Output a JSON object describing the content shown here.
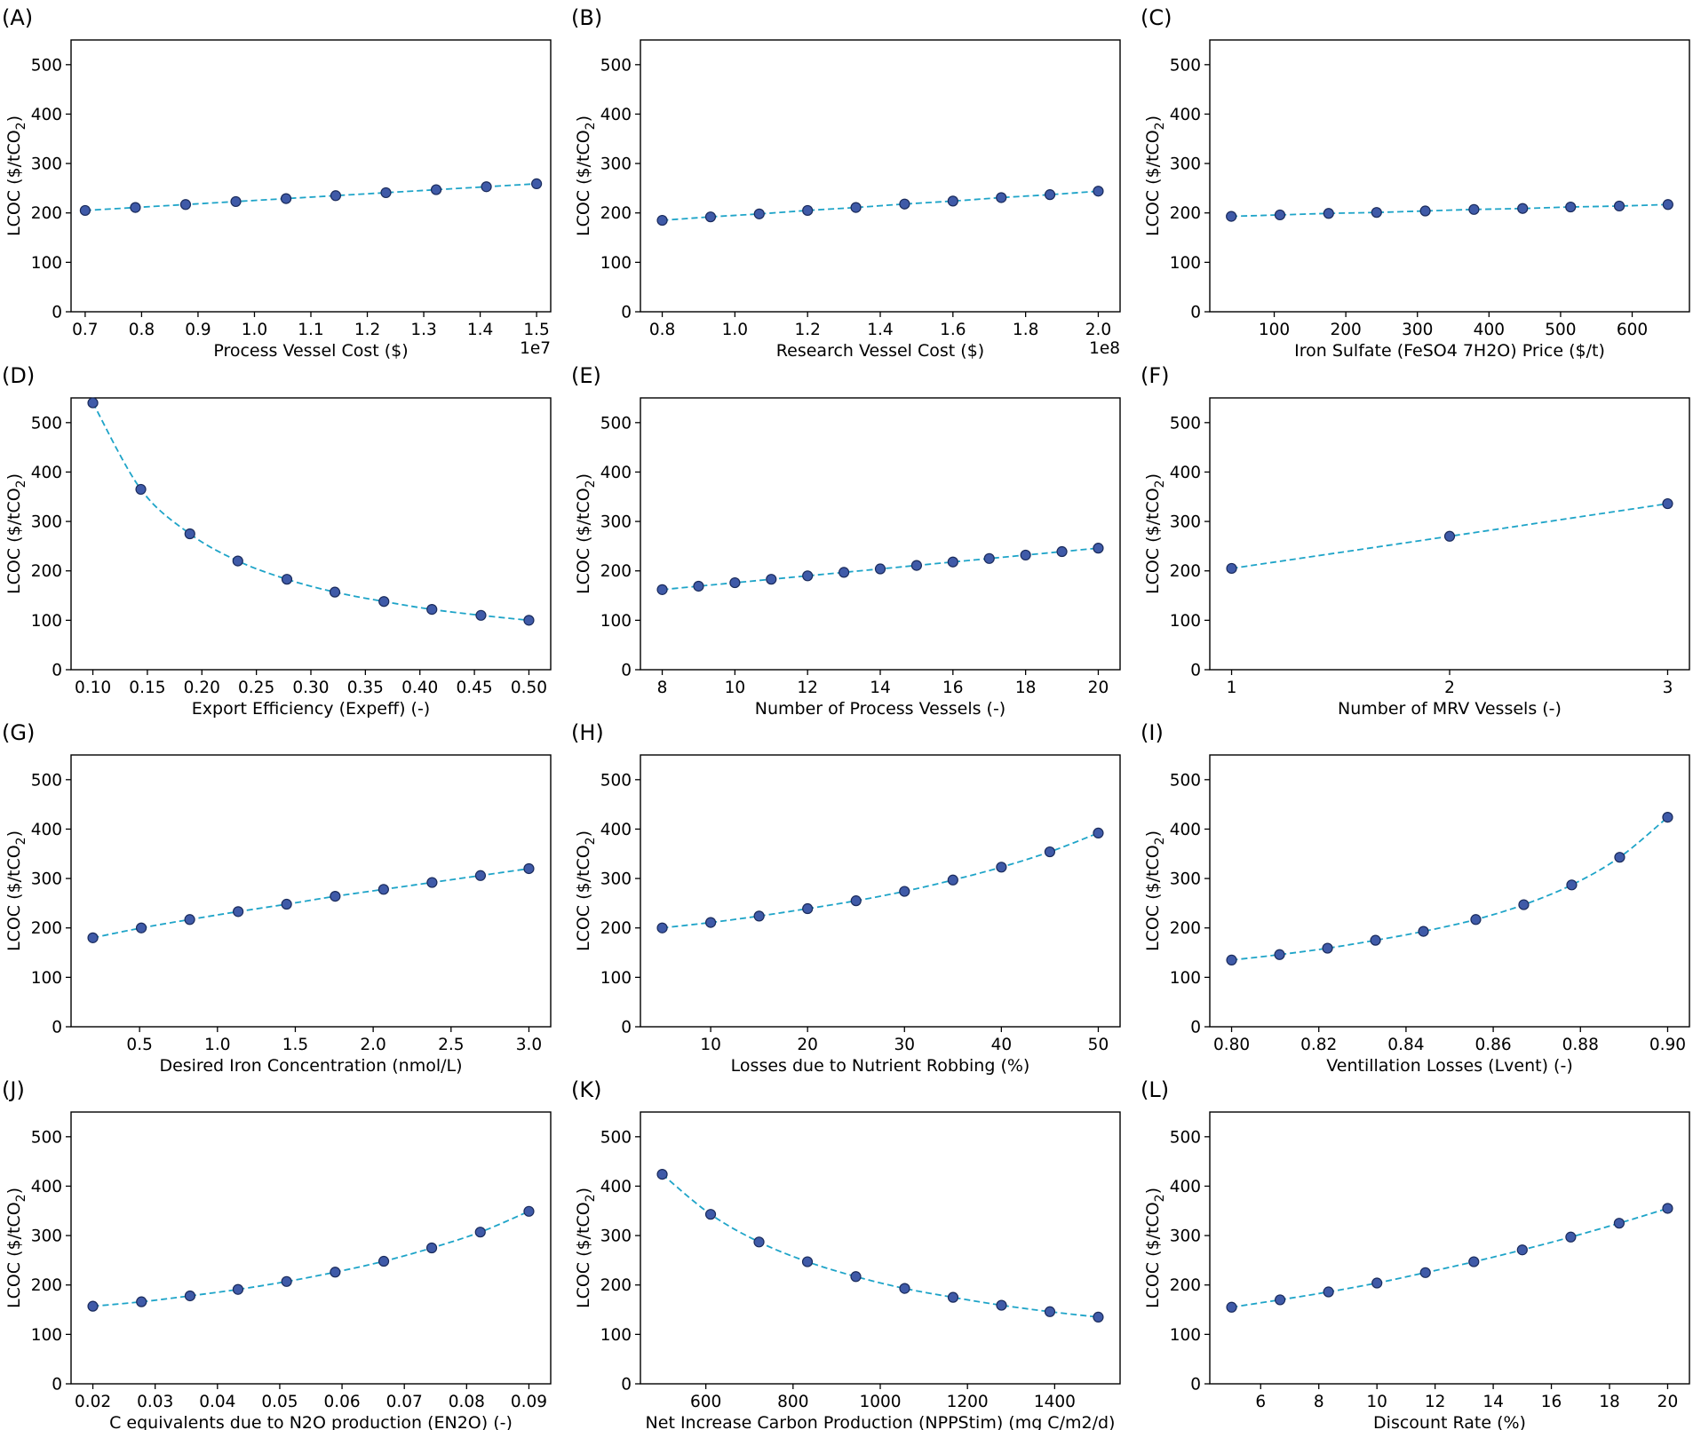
{
  "figure": {
    "point_fill": "#3f5aa8",
    "point_edge": "#1a2b5c",
    "line_color": "#1ea4c8",
    "frame_color": "#000000"
  },
  "chart_data": [
    {
      "panel": "(A)",
      "type": "line",
      "xlabel": "Process Vessel Cost ($)",
      "ylabel": "LCOC ($/tCO",
      "ylabel_sub": "2",
      "ylabel_end": ")",
      "x_offset_label": "1e7",
      "xlim": [
        0.675,
        1.525
      ],
      "ylim": [
        0,
        550
      ],
      "xticks": [
        0.7,
        0.8,
        0.9,
        1.0,
        1.1,
        1.2,
        1.3,
        1.4,
        1.5
      ],
      "xtick_labels": [
        "0.7",
        "0.8",
        "0.9",
        "1.0",
        "1.1",
        "1.2",
        "1.3",
        "1.4",
        "1.5"
      ],
      "yticks": [
        0,
        100,
        200,
        300,
        400,
        500
      ],
      "ytick_labels": [
        "0",
        "100",
        "200",
        "300",
        "400",
        "500"
      ],
      "x": [
        0.7,
        0.789,
        0.878,
        0.967,
        1.056,
        1.144,
        1.233,
        1.322,
        1.411,
        1.5
      ],
      "y": [
        205,
        211,
        217,
        223,
        229,
        235,
        241,
        247,
        253,
        259
      ]
    },
    {
      "panel": "(B)",
      "type": "line",
      "xlabel": "Research Vessel Cost ($)",
      "ylabel": "LCOC ($/tCO",
      "ylabel_sub": "2",
      "ylabel_end": ")",
      "x_offset_label": "1e8",
      "xlim": [
        0.74,
        2.06
      ],
      "ylim": [
        0,
        550
      ],
      "xticks": [
        0.8,
        1.0,
        1.2,
        1.4,
        1.6,
        1.8,
        2.0
      ],
      "xtick_labels": [
        "0.8",
        "1.0",
        "1.2",
        "1.4",
        "1.6",
        "1.8",
        "2.0"
      ],
      "yticks": [
        0,
        100,
        200,
        300,
        400,
        500
      ],
      "ytick_labels": [
        "0",
        "100",
        "200",
        "300",
        "400",
        "500"
      ],
      "x": [
        0.8,
        0.933,
        1.067,
        1.2,
        1.333,
        1.467,
        1.6,
        1.733,
        1.867,
        2.0
      ],
      "y": [
        185,
        192,
        198,
        205,
        211,
        218,
        224,
        231,
        237,
        244
      ]
    },
    {
      "panel": "(C)",
      "type": "line",
      "xlabel": "Iron Sulfate (FeSO4 7H2O) Price ($/t)",
      "ylabel": "LCOC ($/tCO",
      "ylabel_sub": "2",
      "ylabel_end": ")",
      "x_offset_label": "",
      "xlim": [
        10,
        680
      ],
      "ylim": [
        0,
        550
      ],
      "xticks": [
        100,
        200,
        300,
        400,
        500,
        600
      ],
      "xtick_labels": [
        "100",
        "200",
        "300",
        "400",
        "500",
        "600"
      ],
      "yticks": [
        0,
        100,
        200,
        300,
        400,
        500
      ],
      "ytick_labels": [
        "0",
        "100",
        "200",
        "300",
        "400",
        "500"
      ],
      "x": [
        40,
        108,
        176,
        243,
        311,
        379,
        447,
        514,
        582,
        650
      ],
      "y": [
        193,
        196,
        199,
        201,
        204,
        207,
        209,
        212,
        214,
        217
      ]
    },
    {
      "panel": "(D)",
      "type": "line",
      "xlabel": "Export Efficiency (Expeff) (-)",
      "ylabel": "LCOC ($/tCO",
      "ylabel_sub": "2",
      "ylabel_end": ")",
      "x_offset_label": "",
      "xlim": [
        0.08,
        0.52
      ],
      "ylim": [
        0,
        550
      ],
      "xticks": [
        0.1,
        0.15,
        0.2,
        0.25,
        0.3,
        0.35,
        0.4,
        0.45,
        0.5
      ],
      "xtick_labels": [
        "0.10",
        "0.15",
        "0.20",
        "0.25",
        "0.30",
        "0.35",
        "0.40",
        "0.45",
        "0.50"
      ],
      "yticks": [
        0,
        100,
        200,
        300,
        400,
        500
      ],
      "ytick_labels": [
        "0",
        "100",
        "200",
        "300",
        "400",
        "500"
      ],
      "x": [
        0.1,
        0.144,
        0.189,
        0.233,
        0.278,
        0.322,
        0.367,
        0.411,
        0.456,
        0.5
      ],
      "y": [
        540,
        365,
        275,
        220,
        183,
        157,
        138,
        122,
        110,
        100
      ]
    },
    {
      "panel": "(E)",
      "type": "line",
      "xlabel": "Number of Process Vessels (-)",
      "ylabel": "LCOC ($/tCO",
      "ylabel_sub": "2",
      "ylabel_end": ")",
      "x_offset_label": "",
      "xlim": [
        7.4,
        20.6
      ],
      "ylim": [
        0,
        550
      ],
      "xticks": [
        8,
        10,
        12,
        14,
        16,
        18,
        20
      ],
      "xtick_labels": [
        "8",
        "10",
        "12",
        "14",
        "16",
        "18",
        "20"
      ],
      "yticks": [
        0,
        100,
        200,
        300,
        400,
        500
      ],
      "ytick_labels": [
        "0",
        "100",
        "200",
        "300",
        "400",
        "500"
      ],
      "x": [
        8,
        9,
        10,
        11,
        12,
        13,
        14,
        15,
        16,
        17,
        18,
        19,
        20
      ],
      "y": [
        162,
        169,
        176,
        183,
        190,
        197,
        204,
        211,
        218,
        225,
        232,
        239,
        246
      ]
    },
    {
      "panel": "(F)",
      "type": "line",
      "xlabel": "Number of MRV Vessels (-)",
      "ylabel": "LCOC ($/tCO",
      "ylabel_sub": "2",
      "ylabel_end": ")",
      "x_offset_label": "",
      "xlim": [
        0.9,
        3.1
      ],
      "ylim": [
        0,
        550
      ],
      "xticks": [
        1,
        2,
        3
      ],
      "xtick_labels": [
        "1",
        "2",
        "3"
      ],
      "yticks": [
        0,
        100,
        200,
        300,
        400,
        500
      ],
      "ytick_labels": [
        "0",
        "100",
        "200",
        "300",
        "400",
        "500"
      ],
      "x": [
        1,
        2,
        3
      ],
      "y": [
        205,
        270,
        336
      ]
    },
    {
      "panel": "(G)",
      "type": "line",
      "xlabel": "Desired Iron Concentration (nmol/L)",
      "ylabel": "LCOC ($/tCO",
      "ylabel_sub": "2",
      "ylabel_end": ")",
      "x_offset_label": "",
      "xlim": [
        0.06,
        3.14
      ],
      "ylim": [
        0,
        550
      ],
      "xticks": [
        0.5,
        1.0,
        1.5,
        2.0,
        2.5,
        3.0
      ],
      "xtick_labels": [
        "0.5",
        "1.0",
        "1.5",
        "2.0",
        "2.5",
        "3.0"
      ],
      "yticks": [
        0,
        100,
        200,
        300,
        400,
        500
      ],
      "ytick_labels": [
        "0",
        "100",
        "200",
        "300",
        "400",
        "500"
      ],
      "x": [
        0.2,
        0.511,
        0.822,
        1.133,
        1.444,
        1.756,
        2.067,
        2.378,
        2.689,
        3.0
      ],
      "y": [
        180,
        200,
        217,
        233,
        248,
        264,
        278,
        292,
        306,
        320
      ]
    },
    {
      "panel": "(H)",
      "type": "line",
      "xlabel": "Losses due to Nutrient Robbing (%)",
      "ylabel": "LCOC ($/tCO",
      "ylabel_sub": "2",
      "ylabel_end": ")",
      "x_offset_label": "",
      "xlim": [
        2.75,
        52.25
      ],
      "ylim": [
        0,
        550
      ],
      "xticks": [
        10,
        20,
        30,
        40,
        50
      ],
      "xtick_labels": [
        "10",
        "20",
        "30",
        "40",
        "50"
      ],
      "yticks": [
        0,
        100,
        200,
        300,
        400,
        500
      ],
      "ytick_labels": [
        "0",
        "100",
        "200",
        "300",
        "400",
        "500"
      ],
      "x": [
        5,
        10,
        15,
        20,
        25,
        30,
        35,
        40,
        45,
        50
      ],
      "y": [
        200,
        211,
        224,
        239,
        255,
        274,
        297,
        323,
        354,
        392
      ]
    },
    {
      "panel": "(I)",
      "type": "line",
      "xlabel": "Ventillation Losses (Lvent) (-)",
      "ylabel": "LCOC ($/tCO",
      "ylabel_sub": "2",
      "ylabel_end": ")",
      "x_offset_label": "",
      "xlim": [
        0.795,
        0.905
      ],
      "ylim": [
        0,
        550
      ],
      "xticks": [
        0.8,
        0.82,
        0.84,
        0.86,
        0.88,
        0.9
      ],
      "xtick_labels": [
        "0.80",
        "0.82",
        "0.84",
        "0.86",
        "0.88",
        "0.90"
      ],
      "yticks": [
        0,
        100,
        200,
        300,
        400,
        500
      ],
      "ytick_labels": [
        "0",
        "100",
        "200",
        "300",
        "400",
        "500"
      ],
      "x": [
        0.8,
        0.811,
        0.822,
        0.833,
        0.844,
        0.856,
        0.867,
        0.878,
        0.889,
        0.9
      ],
      "y": [
        135,
        146,
        159,
        175,
        193,
        217,
        247,
        287,
        343,
        424
      ]
    },
    {
      "panel": "(J)",
      "type": "line",
      "xlabel": "C equivalents due to N2O production (EN2O) (-)",
      "ylabel": "LCOC ($/tCO",
      "ylabel_sub": "2",
      "ylabel_end": ")",
      "x_offset_label": "",
      "xlim": [
        0.0165,
        0.0935
      ],
      "ylim": [
        0,
        550
      ],
      "xticks": [
        0.02,
        0.03,
        0.04,
        0.05,
        0.06,
        0.07,
        0.08,
        0.09
      ],
      "xtick_labels": [
        "0.02",
        "0.03",
        "0.04",
        "0.05",
        "0.06",
        "0.07",
        "0.08",
        "0.09"
      ],
      "yticks": [
        0,
        100,
        200,
        300,
        400,
        500
      ],
      "ytick_labels": [
        "0",
        "100",
        "200",
        "300",
        "400",
        "500"
      ],
      "x": [
        0.02,
        0.0278,
        0.0356,
        0.0433,
        0.0511,
        0.0589,
        0.0667,
        0.0744,
        0.0822,
        0.09
      ],
      "y": [
        157,
        166,
        178,
        191,
        207,
        226,
        248,
        275,
        307,
        349
      ]
    },
    {
      "panel": "(K)",
      "type": "line",
      "xlabel": "Net Increase Carbon Production (NPPStim) (mg C/m2/d)",
      "ylabel": "LCOC ($/tCO",
      "ylabel_sub": "2",
      "ylabel_end": ")",
      "x_offset_label": "",
      "xlim": [
        450,
        1550
      ],
      "ylim": [
        0,
        550
      ],
      "xticks": [
        600,
        800,
        1000,
        1200,
        1400
      ],
      "xtick_labels": [
        "600",
        "800",
        "1000",
        "1200",
        "1400"
      ],
      "yticks": [
        0,
        100,
        200,
        300,
        400,
        500
      ],
      "ytick_labels": [
        "0",
        "100",
        "200",
        "300",
        "400",
        "500"
      ],
      "x": [
        500,
        611,
        722,
        833,
        944,
        1056,
        1167,
        1278,
        1389,
        1500
      ],
      "y": [
        424,
        343,
        287,
        247,
        217,
        193,
        175,
        159,
        146,
        135
      ]
    },
    {
      "panel": "(L)",
      "type": "line",
      "xlabel": "Discount Rate (%)",
      "ylabel": "LCOC ($/tCO",
      "ylabel_sub": "2",
      "ylabel_end": ")",
      "x_offset_label": "",
      "xlim": [
        4.25,
        20.75
      ],
      "ylim": [
        0,
        550
      ],
      "xticks": [
        6,
        8,
        10,
        12,
        14,
        16,
        18,
        20
      ],
      "xtick_labels": [
        "6",
        "8",
        "10",
        "12",
        "14",
        "16",
        "18",
        "20"
      ],
      "yticks": [
        0,
        100,
        200,
        300,
        400,
        500
      ],
      "ytick_labels": [
        "0",
        "100",
        "200",
        "300",
        "400",
        "500"
      ],
      "x": [
        5,
        6.667,
        8.333,
        10,
        11.667,
        13.333,
        15,
        16.667,
        18.333,
        20
      ],
      "y": [
        155,
        170,
        186,
        204,
        225,
        247,
        271,
        297,
        325,
        355
      ]
    }
  ]
}
